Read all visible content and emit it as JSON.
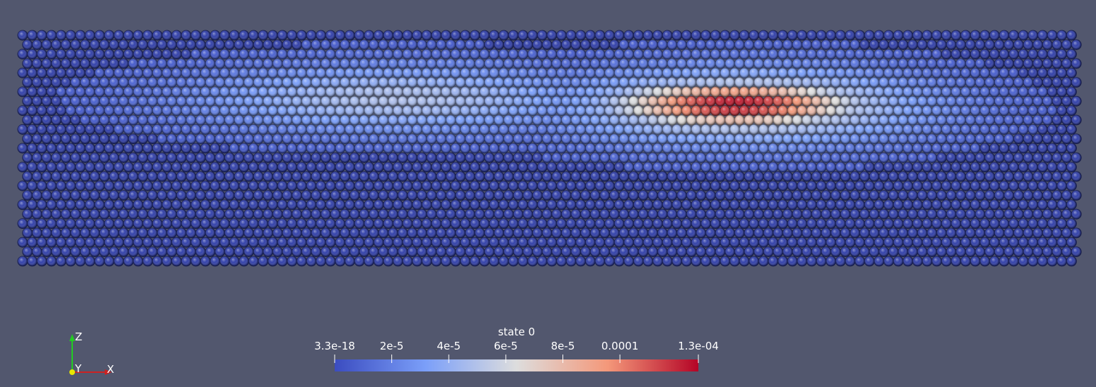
{
  "colorbar": {
    "title": "state 0",
    "range": [
      3.3e-18,
      0.0001275
    ],
    "ticks": [
      {
        "value": 3.3e-18,
        "label": "3.3e-18"
      },
      {
        "value": 2e-05,
        "label": "2e-5"
      },
      {
        "value": 4e-05,
        "label": "4e-5"
      },
      {
        "value": 6e-05,
        "label": "6e-5"
      },
      {
        "value": 8e-05,
        "label": "8e-5"
      },
      {
        "value": 0.0001,
        "label": "0.0001"
      },
      {
        "value": 0.0001275,
        "label": "1.3e-04"
      }
    ]
  },
  "axes": {
    "z": "Z",
    "y": "Y",
    "x": "X"
  }
}
